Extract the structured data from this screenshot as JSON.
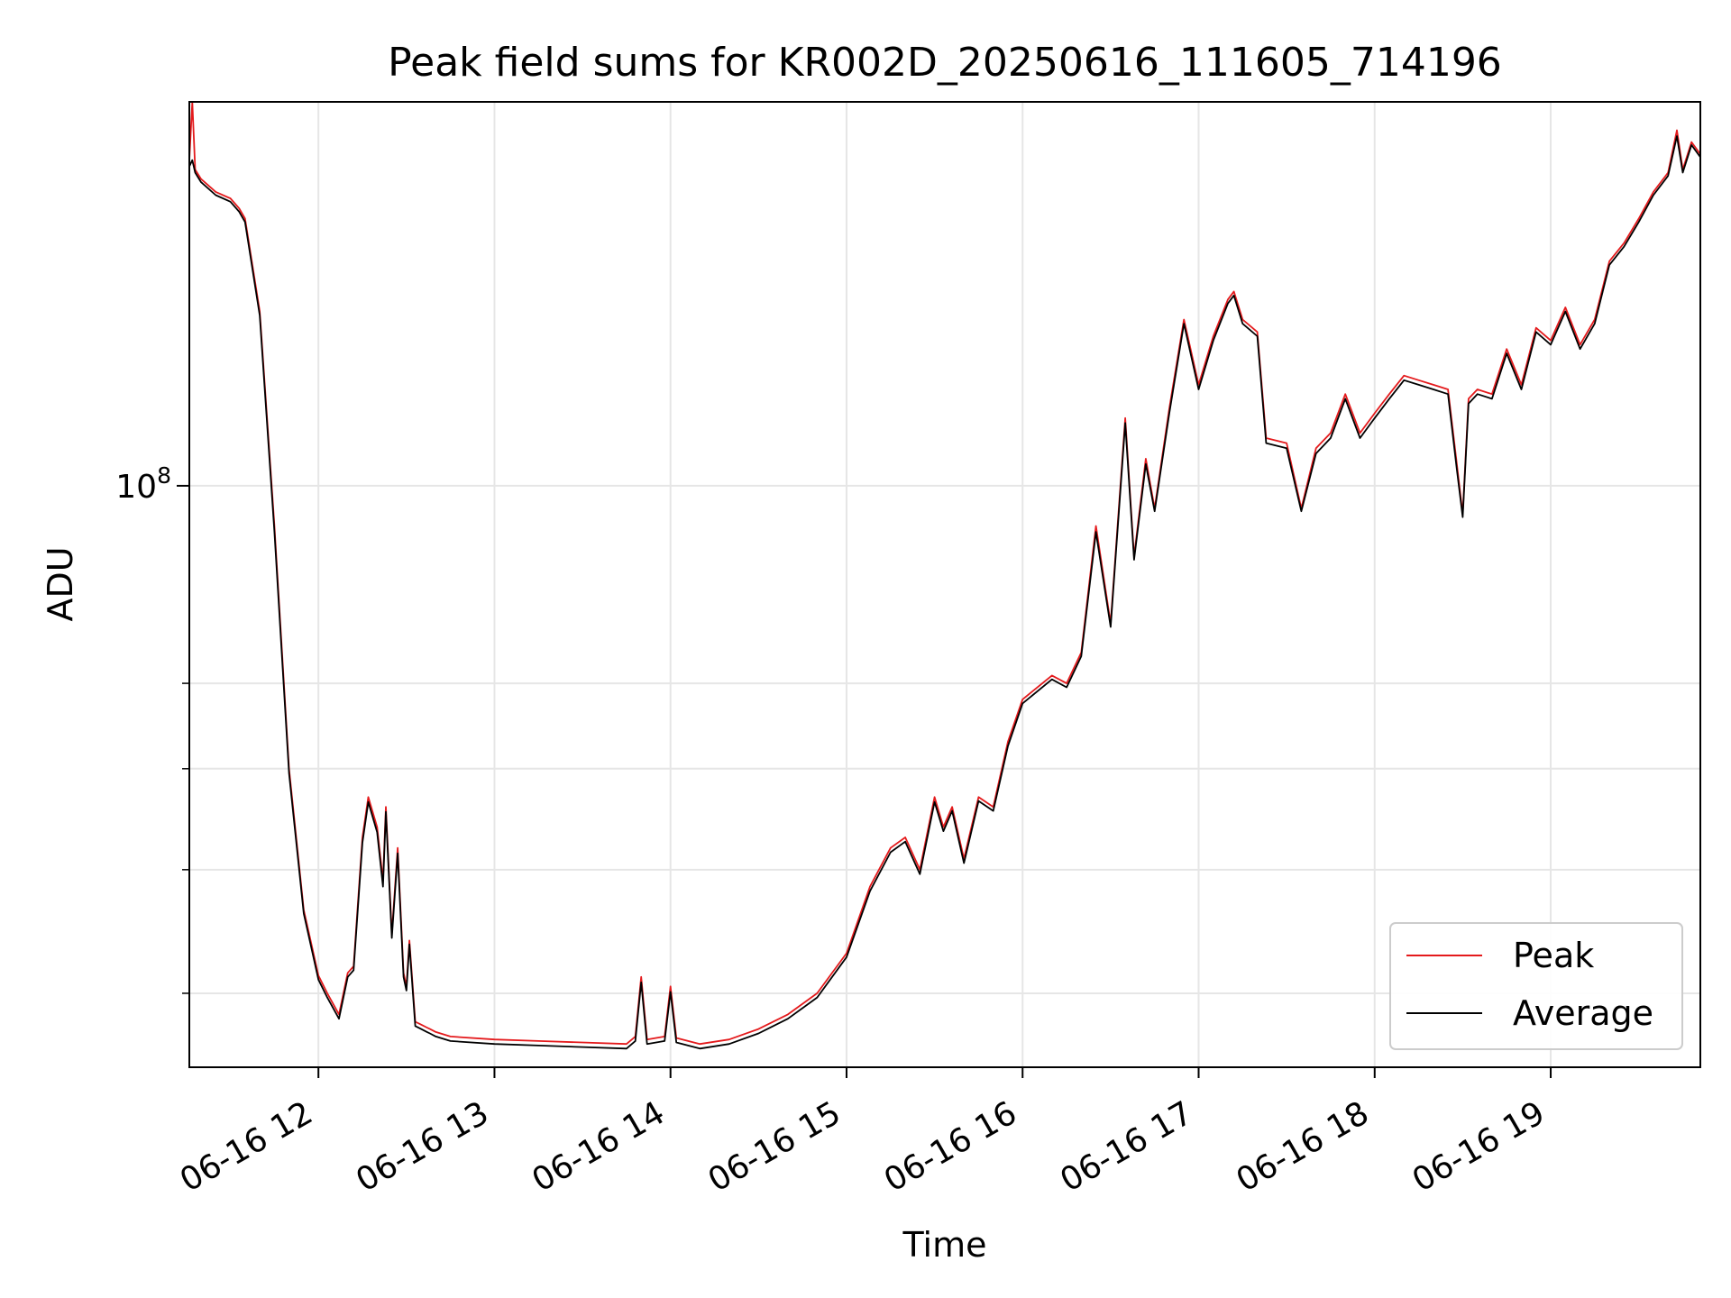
{
  "chart_data": {
    "type": "line",
    "title": "Peak field sums for KR002D_20250616_111605_714196",
    "xlabel": "Time",
    "ylabel": "ADU",
    "y_scale": "log",
    "xlim": [
      "2025-06-16 11:16",
      "2025-06-16 19:51"
    ],
    "ylim": [
      35000000,
      200000000
    ],
    "x_ticks": [
      "06-16 12",
      "06-16 13",
      "06-16 14",
      "06-16 15",
      "06-16 16",
      "06-16 17",
      "06-16 18",
      "06-16 19"
    ],
    "x_tick_positions": [
      "2025-06-16 12:00",
      "2025-06-16 13:00",
      "2025-06-16 14:00",
      "2025-06-16 15:00",
      "2025-06-16 16:00",
      "2025-06-16 17:00",
      "2025-06-16 18:00",
      "2025-06-16 19:00"
    ],
    "y_ticks_major": [
      {
        "value": 100000000,
        "base": "10",
        "exponent": "8"
      }
    ],
    "y_ticks_minor": [
      40000000,
      50000000,
      60000000,
      70000000
    ],
    "grid": true,
    "legend_position": "lower-right",
    "colors": {
      "Peak": "#e41a1c",
      "Average": "#000000"
    },
    "series": [
      {
        "name": "Peak",
        "color": "#e41a1c",
        "x": [
          "2025-06-16 11:16",
          "2025-06-16 11:17",
          "2025-06-16 11:18",
          "2025-06-16 11:20",
          "2025-06-16 11:25",
          "2025-06-16 11:30",
          "2025-06-16 11:33",
          "2025-06-16 11:35",
          "2025-06-16 11:40",
          "2025-06-16 11:45",
          "2025-06-16 11:50",
          "2025-06-16 11:55",
          "2025-06-16 12:00",
          "2025-06-16 12:03",
          "2025-06-16 12:07",
          "2025-06-16 12:10",
          "2025-06-16 12:12",
          "2025-06-16 12:15",
          "2025-06-16 12:17",
          "2025-06-16 12:20",
          "2025-06-16 12:22",
          "2025-06-16 12:23",
          "2025-06-16 12:25",
          "2025-06-16 12:27",
          "2025-06-16 12:29",
          "2025-06-16 12:30",
          "2025-06-16 12:31",
          "2025-06-16 12:33",
          "2025-06-16 12:35",
          "2025-06-16 12:37",
          "2025-06-16 12:38",
          "2025-06-16 12:40",
          "2025-06-16 12:45",
          "2025-06-16 13:00",
          "2025-06-16 13:15",
          "2025-06-16 13:30",
          "2025-06-16 13:45",
          "2025-06-16 13:48",
          "2025-06-16 13:50",
          "2025-06-16 13:52",
          "2025-06-16 13:58",
          "2025-06-16 14:00",
          "2025-06-16 14:02",
          "2025-06-16 14:10",
          "2025-06-16 14:20",
          "2025-06-16 14:30",
          "2025-06-16 14:40",
          "2025-06-16 14:50",
          "2025-06-16 15:00",
          "2025-06-16 15:08",
          "2025-06-16 15:15",
          "2025-06-16 15:20",
          "2025-06-16 15:25",
          "2025-06-16 15:30",
          "2025-06-16 15:33",
          "2025-06-16 15:36",
          "2025-06-16 15:40",
          "2025-06-16 15:45",
          "2025-06-16 15:50",
          "2025-06-16 15:55",
          "2025-06-16 16:00",
          "2025-06-16 16:10",
          "2025-06-16 16:15",
          "2025-06-16 16:20",
          "2025-06-16 16:25",
          "2025-06-16 16:30",
          "2025-06-16 16:35",
          "2025-06-16 16:38",
          "2025-06-16 16:42",
          "2025-06-16 16:45",
          "2025-06-16 16:50",
          "2025-06-16 16:55",
          "2025-06-16 17:00",
          "2025-06-16 17:05",
          "2025-06-16 17:10",
          "2025-06-16 17:12",
          "2025-06-16 17:15",
          "2025-06-16 17:20",
          "2025-06-16 17:23",
          "2025-06-16 17:30",
          "2025-06-16 17:35",
          "2025-06-16 17:40",
          "2025-06-16 17:45",
          "2025-06-16 17:50",
          "2025-06-16 17:55",
          "2025-06-16 18:00",
          "2025-06-16 18:05",
          "2025-06-16 18:10",
          "2025-06-16 18:15",
          "2025-06-16 18:20",
          "2025-06-16 18:25",
          "2025-06-16 18:28",
          "2025-06-16 18:30",
          "2025-06-16 18:32",
          "2025-06-16 18:35",
          "2025-06-16 18:40",
          "2025-06-16 18:45",
          "2025-06-16 18:50",
          "2025-06-16 18:55",
          "2025-06-16 19:00",
          "2025-06-16 19:05",
          "2025-06-16 19:10",
          "2025-06-16 19:15",
          "2025-06-16 19:20",
          "2025-06-16 19:25",
          "2025-06-16 19:30",
          "2025-06-16 19:35",
          "2025-06-16 19:40",
          "2025-06-16 19:43",
          "2025-06-16 19:45",
          "2025-06-16 19:48",
          "2025-06-16 19:51"
        ],
        "y": [
          180000000,
          200000000,
          177000000,
          174000000,
          170000000,
          168000000,
          165000000,
          162000000,
          137000000,
          93000000,
          60000000,
          46500000,
          41300000,
          40000000,
          38500000,
          41500000,
          42000000,
          53000000,
          57000000,
          54000000,
          49000000,
          56000000,
          44500000,
          52000000,
          41500000,
          40500000,
          44000000,
          38000000,
          37800000,
          37600000,
          37500000,
          37300000,
          37000000,
          36800000,
          36700000,
          36600000,
          36500000,
          37000000,
          41200000,
          36800000,
          37000000,
          40500000,
          36900000,
          36500000,
          36800000,
          37500000,
          38500000,
          40000000,
          43000000,
          48500000,
          52000000,
          53000000,
          50000000,
          57000000,
          54000000,
          56000000,
          51000000,
          57000000,
          56000000,
          63000000,
          68000000,
          71000000,
          70000000,
          74000000,
          93000000,
          78000000,
          113000000,
          88000000,
          105000000,
          96000000,
          115000000,
          135000000,
          120000000,
          131000000,
          140000000,
          142000000,
          135000000,
          132000000,
          109000000,
          108000000,
          96000000,
          107000000,
          110000000,
          118000000,
          110000000,
          114000000,
          118000000,
          122000000,
          121000000,
          120000000,
          119000000,
          104000000,
          95000000,
          117000000,
          119000000,
          118000000,
          128000000,
          120000000,
          133000000,
          130000000,
          138000000,
          129000000,
          135000000,
          150000000,
          155000000,
          162000000,
          170000000,
          176000000,
          190000000,
          177000000,
          186000000,
          182000000
        ]
      },
      {
        "name": "Average",
        "color": "#000000",
        "x": [
          "2025-06-16 11:16",
          "2025-06-16 11:17",
          "2025-06-16 11:18",
          "2025-06-16 11:20",
          "2025-06-16 11:25",
          "2025-06-16 11:30",
          "2025-06-16 11:33",
          "2025-06-16 11:35",
          "2025-06-16 11:40",
          "2025-06-16 11:45",
          "2025-06-16 11:50",
          "2025-06-16 11:55",
          "2025-06-16 12:00",
          "2025-06-16 12:03",
          "2025-06-16 12:07",
          "2025-06-16 12:10",
          "2025-06-16 12:12",
          "2025-06-16 12:15",
          "2025-06-16 12:17",
          "2025-06-16 12:20",
          "2025-06-16 12:22",
          "2025-06-16 12:23",
          "2025-06-16 12:25",
          "2025-06-16 12:27",
          "2025-06-16 12:29",
          "2025-06-16 12:30",
          "2025-06-16 12:31",
          "2025-06-16 12:33",
          "2025-06-16 12:35",
          "2025-06-16 12:37",
          "2025-06-16 12:38",
          "2025-06-16 12:40",
          "2025-06-16 12:45",
          "2025-06-16 13:00",
          "2025-06-16 13:15",
          "2025-06-16 13:30",
          "2025-06-16 13:45",
          "2025-06-16 13:48",
          "2025-06-16 13:50",
          "2025-06-16 13:52",
          "2025-06-16 13:58",
          "2025-06-16 14:00",
          "2025-06-16 14:02",
          "2025-06-16 14:10",
          "2025-06-16 14:20",
          "2025-06-16 14:30",
          "2025-06-16 14:40",
          "2025-06-16 14:50",
          "2025-06-16 15:00",
          "2025-06-16 15:08",
          "2025-06-16 15:15",
          "2025-06-16 15:20",
          "2025-06-16 15:25",
          "2025-06-16 15:30",
          "2025-06-16 15:33",
          "2025-06-16 15:36",
          "2025-06-16 15:40",
          "2025-06-16 15:45",
          "2025-06-16 15:50",
          "2025-06-16 15:55",
          "2025-06-16 16:00",
          "2025-06-16 16:10",
          "2025-06-16 16:15",
          "2025-06-16 16:20",
          "2025-06-16 16:25",
          "2025-06-16 16:30",
          "2025-06-16 16:35",
          "2025-06-16 16:38",
          "2025-06-16 16:42",
          "2025-06-16 16:45",
          "2025-06-16 16:50",
          "2025-06-16 16:55",
          "2025-06-16 17:00",
          "2025-06-16 17:05",
          "2025-06-16 17:10",
          "2025-06-16 17:12",
          "2025-06-16 17:15",
          "2025-06-16 17:20",
          "2025-06-16 17:23",
          "2025-06-16 17:30",
          "2025-06-16 17:35",
          "2025-06-16 17:40",
          "2025-06-16 17:45",
          "2025-06-16 17:50",
          "2025-06-16 17:55",
          "2025-06-16 18:00",
          "2025-06-16 18:05",
          "2025-06-16 18:10",
          "2025-06-16 18:15",
          "2025-06-16 18:20",
          "2025-06-16 18:25",
          "2025-06-16 18:28",
          "2025-06-16 18:30",
          "2025-06-16 18:32",
          "2025-06-16 18:35",
          "2025-06-16 18:40",
          "2025-06-16 18:45",
          "2025-06-16 18:50",
          "2025-06-16 18:55",
          "2025-06-16 19:00",
          "2025-06-16 19:05",
          "2025-06-16 19:10",
          "2025-06-16 19:15",
          "2025-06-16 19:20",
          "2025-06-16 19:25",
          "2025-06-16 19:30",
          "2025-06-16 19:35",
          "2025-06-16 19:40",
          "2025-06-16 19:43",
          "2025-06-16 19:45",
          "2025-06-16 19:48",
          "2025-06-16 19:51"
        ],
        "y": [
          178000000,
          180000000,
          176000000,
          173000000,
          169000000,
          167000000,
          164000000,
          161000000,
          136000000,
          92000000,
          59500000,
          46200000,
          41000000,
          39700000,
          38200000,
          41200000,
          41700000,
          52500000,
          56500000,
          53500000,
          48500000,
          55500000,
          44200000,
          51500000,
          41200000,
          40200000,
          43700000,
          37700000,
          37500000,
          37300000,
          37200000,
          37000000,
          36700000,
          36500000,
          36400000,
          36300000,
          36200000,
          36700000,
          40800000,
          36500000,
          36700000,
          40100000,
          36600000,
          36200000,
          36500000,
          37200000,
          38200000,
          39700000,
          42700000,
          48100000,
          51600000,
          52600000,
          49600000,
          56500000,
          53600000,
          55600000,
          50600000,
          56600000,
          55600000,
          62500000,
          67500000,
          70500000,
          69500000,
          73500000,
          92000000,
          77500000,
          112000000,
          87500000,
          104000000,
          95500000,
          114000000,
          134000000,
          119000000,
          130000000,
          139000000,
          141000000,
          134000000,
          131000000,
          108000000,
          107000000,
          95500000,
          106000000,
          109000000,
          117000000,
          109000000,
          113000000,
          117000000,
          121000000,
          120000000,
          119000000,
          118000000,
          103000000,
          94500000,
          116000000,
          118000000,
          117000000,
          127000000,
          119000000,
          132000000,
          129000000,
          137000000,
          128000000,
          134000000,
          149000000,
          154000000,
          161000000,
          169000000,
          175000000,
          188000000,
          176000000,
          185000000,
          181000000
        ]
      }
    ]
  }
}
